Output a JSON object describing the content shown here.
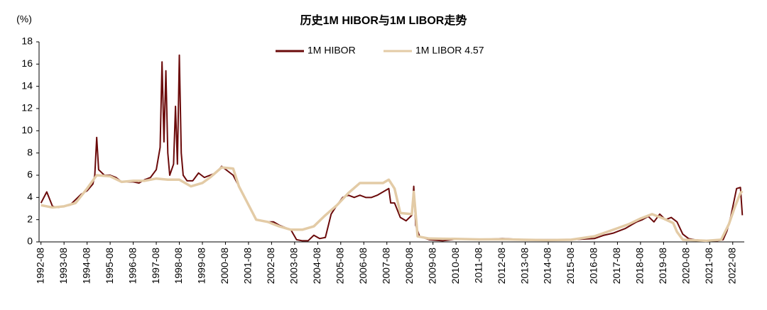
{
  "chart_data": {
    "type": "line",
    "title": "历史1M HIBOR与1M LIBOR走势",
    "y_label": "(%)",
    "xlim": [
      "1992-07",
      "2023-02"
    ],
    "xticks": [
      "1992-08",
      "1993-08",
      "1994-08",
      "1995-08",
      "1996-08",
      "1997-08",
      "1998-08",
      "1999-08",
      "2000-08",
      "2001-08",
      "2002-08",
      "2003-08",
      "2004-08",
      "2005-08",
      "2006-08",
      "2007-08",
      "2008-08",
      "2009-08",
      "2010-08",
      "2011-08",
      "2012-08",
      "2013-08",
      "2014-08",
      "2015-08",
      "2016-08",
      "2017-08",
      "2018-08",
      "2019-08",
      "2020-08",
      "2021-08",
      "2022-08"
    ],
    "ylim": [
      0,
      18
    ],
    "yticks": [
      0,
      2,
      4,
      6,
      8,
      10,
      12,
      14,
      16,
      18
    ],
    "grid": false,
    "legend": "top",
    "series": [
      {
        "name": "1M HIBOR",
        "color": "#6b0a0a",
        "x": [
          "1992-08",
          "1992-11",
          "1993-02",
          "1993-05",
          "1993-08",
          "1993-11",
          "1994-02",
          "1994-05",
          "1994-08",
          "1994-11",
          "1994-12",
          "1995-01",
          "1995-02",
          "1995-05",
          "1995-08",
          "1995-11",
          "1996-02",
          "1996-05",
          "1996-08",
          "1996-11",
          "1997-02",
          "1997-05",
          "1997-08",
          "1997-10",
          "1997-11",
          "1997-12",
          "1998-01",
          "1998-02",
          "1998-03",
          "1998-05",
          "1998-06",
          "1998-07",
          "1998-08",
          "1998-09",
          "1998-10",
          "1998-12",
          "1999-03",
          "1999-06",
          "1999-09",
          "1999-12",
          "2000-03",
          "2000-06",
          "2000-09",
          "2000-12",
          "2001-03",
          "2001-06",
          "2001-09",
          "2001-12",
          "2002-03",
          "2002-06",
          "2002-09",
          "2002-12",
          "2003-03",
          "2003-06",
          "2003-09",
          "2003-12",
          "2004-03",
          "2004-06",
          "2004-09",
          "2004-12",
          "2005-03",
          "2005-06",
          "2005-09",
          "2005-12",
          "2006-03",
          "2006-06",
          "2006-09",
          "2006-12",
          "2007-03",
          "2007-06",
          "2007-09",
          "2007-10",
          "2007-12",
          "2008-03",
          "2008-06",
          "2008-09",
          "2008-10",
          "2008-11",
          "2009-01",
          "2009-06",
          "2010-01",
          "2010-08",
          "2011-08",
          "2012-08",
          "2013-08",
          "2014-08",
          "2015-08",
          "2016-08",
          "2017-01",
          "2017-06",
          "2017-12",
          "2018-03",
          "2018-06",
          "2018-09",
          "2018-12",
          "2019-03",
          "2019-06",
          "2019-09",
          "2019-12",
          "2020-03",
          "2020-06",
          "2020-09",
          "2020-12",
          "2021-06",
          "2021-12",
          "2022-03",
          "2022-05",
          "2022-07",
          "2022-10",
          "2022-12",
          "2023-01"
        ],
        "values": [
          3.5,
          4.5,
          3.2,
          3.1,
          3.2,
          3.3,
          3.8,
          4.3,
          4.6,
          5.2,
          6.0,
          9.4,
          6.5,
          6.0,
          6.0,
          5.8,
          5.4,
          5.4,
          5.4,
          5.3,
          5.6,
          5.8,
          6.5,
          8.5,
          16.2,
          9.0,
          15.4,
          8.0,
          6.0,
          7.0,
          12.2,
          7.0,
          16.8,
          8.0,
          6.0,
          5.5,
          5.5,
          6.2,
          5.8,
          6.0,
          6.2,
          6.8,
          6.4,
          6.0,
          5.0,
          4.0,
          3.0,
          2.0,
          1.9,
          1.8,
          1.8,
          1.5,
          1.3,
          1.1,
          0.2,
          0.1,
          0.1,
          0.6,
          0.3,
          0.4,
          2.5,
          3.3,
          4.0,
          4.2,
          4.0,
          4.2,
          4.0,
          4.0,
          4.2,
          4.5,
          4.8,
          3.5,
          3.5,
          2.2,
          1.9,
          2.4,
          5.0,
          1.5,
          0.5,
          0.2,
          0.1,
          0.25,
          0.2,
          0.3,
          0.2,
          0.2,
          0.2,
          0.3,
          0.6,
          0.8,
          1.2,
          1.5,
          1.8,
          2.0,
          2.3,
          1.8,
          2.5,
          2.0,
          2.2,
          1.8,
          0.7,
          0.3,
          0.2,
          0.1,
          0.1,
          0.2,
          1.0,
          2.3,
          4.8,
          4.9,
          2.4
        ]
      },
      {
        "name": "1M LIBOR 4.57",
        "color": "#e3cba6",
        "x": [
          "1992-08",
          "1993-02",
          "1993-08",
          "1994-02",
          "1994-08",
          "1995-01",
          "1995-08",
          "1996-02",
          "1996-08",
          "1997-02",
          "1997-08",
          "1998-02",
          "1998-08",
          "1999-02",
          "1999-08",
          "1999-12",
          "2000-06",
          "2000-12",
          "2001-03",
          "2001-09",
          "2001-12",
          "2002-06",
          "2002-12",
          "2003-06",
          "2003-12",
          "2004-06",
          "2004-12",
          "2005-06",
          "2005-12",
          "2006-06",
          "2006-12",
          "2007-06",
          "2007-09",
          "2007-12",
          "2008-03",
          "2008-09",
          "2008-10",
          "2008-12",
          "2009-06",
          "2010-08",
          "2011-08",
          "2012-08",
          "2013-08",
          "2014-08",
          "2015-08",
          "2016-08",
          "2017-08",
          "2018-02",
          "2018-08",
          "2019-02",
          "2019-08",
          "2020-01",
          "2020-03",
          "2020-06",
          "2021-06",
          "2022-02",
          "2022-06",
          "2022-09",
          "2022-12",
          "2023-01"
        ],
        "values": [
          3.3,
          3.1,
          3.2,
          3.5,
          4.8,
          6.0,
          5.9,
          5.4,
          5.5,
          5.5,
          5.7,
          5.6,
          5.6,
          5.0,
          5.3,
          5.8,
          6.7,
          6.6,
          5.0,
          3.0,
          2.0,
          1.8,
          1.4,
          1.1,
          1.1,
          1.4,
          2.4,
          3.3,
          4.4,
          5.3,
          5.3,
          5.3,
          5.6,
          4.8,
          2.6,
          2.5,
          4.5,
          0.5,
          0.3,
          0.27,
          0.22,
          0.24,
          0.19,
          0.16,
          0.2,
          0.5,
          1.23,
          1.6,
          2.1,
          2.5,
          2.1,
          1.7,
          0.9,
          0.2,
          0.1,
          0.2,
          1.6,
          3.1,
          4.4,
          4.57
        ]
      }
    ]
  }
}
